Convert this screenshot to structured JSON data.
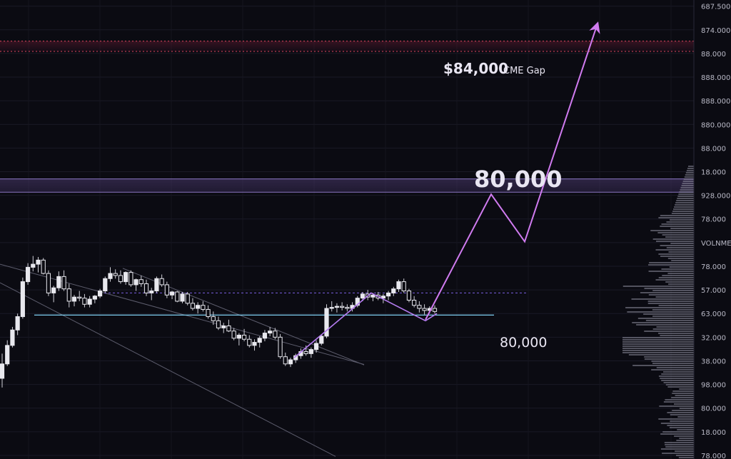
{
  "chart_data": {
    "type": "candlestick",
    "axis": {
      "ticks": [
        {
          "label": "687.500",
          "value": 90600
        },
        {
          "label": "874.000",
          "value": 88300
        },
        {
          "label": "88.000",
          "value": 86000
        },
        {
          "label": "888.000",
          "value": 83700
        },
        {
          "label": "888.000",
          "value": 81400
        },
        {
          "label": "880.000",
          "value": 79100
        },
        {
          "label": "88.000",
          "value": 76800
        },
        {
          "label": "18.000",
          "value": 74500
        },
        {
          "label": "928.000",
          "value": 72200
        },
        {
          "label": "78.000",
          "value": 69900
        },
        {
          "label": "VOLNME",
          "value": 67600
        },
        {
          "label": "78.000",
          "value": 65300
        },
        {
          "label": "57.000",
          "value": 63000
        },
        {
          "label": "63.000",
          "value": 60700
        },
        {
          "label": "32.000",
          "value": 58400
        },
        {
          "label": "38.000",
          "value": 56100
        },
        {
          "label": "98.000",
          "value": 53800
        },
        {
          "label": "80.000",
          "value": 51500
        },
        {
          "label": "18.000",
          "value": 49200
        },
        {
          "label": "78.000",
          "value": 46900
        }
      ],
      "ymin": 46550,
      "ymax": 91200,
      "grid": true
    },
    "price_values": [
      [
        54400,
        56800,
        53500,
        55800
      ],
      [
        55800,
        58100,
        55600,
        57600
      ],
      [
        57600,
        59400,
        57400,
        59100
      ],
      [
        59100,
        60700,
        58600,
        60400
      ],
      [
        60400,
        64200,
        60200,
        63800
      ],
      [
        63800,
        65600,
        63500,
        65200
      ],
      [
        65200,
        66300,
        64800,
        65500
      ],
      [
        65500,
        66200,
        64700,
        65900
      ],
      [
        65900,
        66100,
        64500,
        64600
      ],
      [
        64600,
        64900,
        62400,
        62700
      ],
      [
        62700,
        63400,
        61800,
        63200
      ],
      [
        63200,
        64800,
        62900,
        64300
      ],
      [
        64300,
        64900,
        62900,
        63100
      ],
      [
        63100,
        63600,
        61300,
        61900
      ],
      [
        61900,
        62500,
        61400,
        62300
      ],
      [
        62300,
        62900,
        61900,
        62200
      ],
      [
        62200,
        62600,
        61300,
        61600
      ],
      [
        61600,
        62400,
        61300,
        62100
      ],
      [
        62100,
        62500,
        61700,
        62400
      ],
      [
        62400,
        63100,
        62200,
        62900
      ],
      [
        62900,
        64300,
        62700,
        64100
      ],
      [
        64100,
        65200,
        63800,
        64600
      ],
      [
        64600,
        65000,
        64100,
        64400
      ],
      [
        64400,
        64900,
        63600,
        63800
      ],
      [
        63800,
        64800,
        63500,
        64700
      ],
      [
        64700,
        64900,
        63300,
        63500
      ],
      [
        63500,
        64100,
        62900,
        64000
      ],
      [
        64000,
        64400,
        63300,
        63600
      ],
      [
        63600,
        64000,
        62400,
        62700
      ],
      [
        62700,
        63200,
        62000,
        62900
      ],
      [
        62900,
        64300,
        62700,
        64100
      ],
      [
        64100,
        64500,
        63300,
        63500
      ],
      [
        63500,
        63800,
        62200,
        62500
      ],
      [
        62500,
        62900,
        62100,
        62800
      ],
      [
        62800,
        62900,
        61800,
        61900
      ],
      [
        61900,
        62800,
        61700,
        62600
      ],
      [
        62600,
        62800,
        61500,
        61700
      ],
      [
        61700,
        62200,
        61000,
        61200
      ],
      [
        61200,
        61800,
        60700,
        61500
      ],
      [
        61500,
        61900,
        60900,
        61100
      ],
      [
        61100,
        61500,
        60200,
        60400
      ],
      [
        60400,
        60900,
        59600,
        60000
      ],
      [
        60000,
        60400,
        59100,
        59300
      ],
      [
        59300,
        59800,
        58800,
        59500
      ],
      [
        59500,
        60100,
        58900,
        59000
      ],
      [
        59000,
        59300,
        58100,
        58300
      ],
      [
        58300,
        58800,
        57600,
        58600
      ],
      [
        58600,
        59200,
        58000,
        58200
      ],
      [
        58200,
        58600,
        57400,
        57600
      ],
      [
        57600,
        58200,
        57100,
        57900
      ],
      [
        57900,
        58500,
        57400,
        58300
      ],
      [
        58300,
        59100,
        58000,
        58800
      ],
      [
        58800,
        59400,
        58500,
        59000
      ],
      [
        59000,
        59300,
        58200,
        58400
      ],
      [
        58400,
        58700,
        56300,
        56500
      ],
      [
        56500,
        56900,
        55600,
        55800
      ],
      [
        55800,
        56400,
        55500,
        56200
      ],
      [
        56200,
        56800,
        55900,
        56600
      ],
      [
        56600,
        57300,
        56300,
        57000
      ],
      [
        57000,
        57600,
        56600,
        56800
      ],
      [
        56800,
        57400,
        56400,
        57200
      ],
      [
        57200,
        58100,
        56900,
        57800
      ],
      [
        57800,
        58700,
        57600,
        58500
      ],
      [
        58500,
        61600,
        58300,
        61200
      ],
      [
        61200,
        61900,
        60900,
        61300
      ],
      [
        61300,
        61700,
        60800,
        61400
      ],
      [
        61400,
        61800,
        61000,
        61300
      ],
      [
        61300,
        61600,
        60900,
        61200
      ],
      [
        61200,
        61800,
        60900,
        61500
      ],
      [
        61500,
        62400,
        61300,
        62200
      ],
      [
        62200,
        62800,
        61900,
        62600
      ],
      [
        62600,
        63000,
        62000,
        62300
      ],
      [
        62300,
        62700,
        61900,
        62500
      ],
      [
        62500,
        62800,
        62000,
        62200
      ],
      [
        62200,
        62600,
        61700,
        62400
      ],
      [
        62400,
        62900,
        62000,
        62700
      ],
      [
        62700,
        63300,
        62400,
        63100
      ],
      [
        63100,
        64000,
        62800,
        63800
      ],
      [
        63800,
        64100,
        62700,
        62900
      ],
      [
        62900,
        63100,
        61800,
        62000
      ],
      [
        62000,
        62400,
        61300,
        61500
      ],
      [
        61500,
        61900,
        60800,
        61200
      ],
      [
        61200,
        61600,
        60600,
        61000
      ],
      [
        61000,
        61400,
        60700,
        61200
      ],
      [
        61200,
        61500,
        60700,
        60900
      ]
    ],
    "support_line": 60550,
    "dashed_resistance": 62700,
    "wedge_lines": [
      {
        "x0": 0,
        "v0": 65500,
        "x1": 510,
        "v1": 55750
      },
      {
        "x0": 0,
        "v0": 63700,
        "x1": 470,
        "v1": 46800
      },
      {
        "x0": 172,
        "v0": 65100,
        "x1": 510,
        "v1": 55700
      }
    ],
    "projection": [
      [
        596,
        60100
      ],
      [
        688,
        72300
      ],
      [
        735,
        67700
      ],
      [
        837,
        88900
      ]
    ],
    "small_zigzag": [
      [
        412,
        56400
      ],
      [
        520,
        62700
      ],
      [
        596,
        60000
      ],
      [
        612,
        60700
      ]
    ],
    "annotations": {
      "cme_gap_amount": "$84,000",
      "cme_gap_label": "CME Gap",
      "zone_label": "80,000",
      "support_label": "80,000"
    },
    "cme_gap_band": [
      86200,
      87200
    ],
    "zone_band": [
      72500,
      73800
    ],
    "volume_profile_note": "right-side horizontal volume histogram"
  }
}
